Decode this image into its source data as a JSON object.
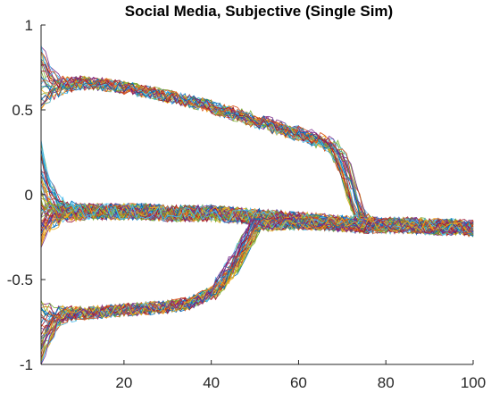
{
  "chart_data": {
    "type": "line",
    "title": "Social Media, Subjective (Single Sim)",
    "xlabel": "",
    "ylabel": "",
    "xlim": [
      1,
      100
    ],
    "ylim": [
      -1,
      1
    ],
    "xticks": [
      20,
      40,
      60,
      80,
      100
    ],
    "yticks": [
      -1,
      -0.5,
      0,
      0.5,
      1
    ],
    "xtick_labels": [
      "20",
      "40",
      "60",
      "80",
      "100"
    ],
    "ytick_labels": [
      "-1",
      "-0.5",
      "0",
      "0.5",
      "1"
    ],
    "grid": false,
    "legend": "none",
    "x": [
      1,
      3,
      5,
      7,
      10,
      15,
      20,
      25,
      30,
      35,
      40,
      45,
      50,
      55,
      60,
      65,
      68,
      70,
      72,
      74,
      76,
      80,
      85,
      90,
      95,
      100
    ],
    "series_groups": [
      {
        "count": 30,
        "spread": 0.04,
        "initial_spread": 0.22,
        "values": [
          0.72,
          0.66,
          0.64,
          0.65,
          0.66,
          0.65,
          0.63,
          0.61,
          0.58,
          0.55,
          0.52,
          0.48,
          0.44,
          0.4,
          0.36,
          0.32,
          0.28,
          0.2,
          0.05,
          -0.12,
          -0.17,
          -0.18,
          -0.18,
          -0.19,
          -0.19,
          -0.2
        ]
      },
      {
        "count": 60,
        "spread": 0.05,
        "initial_spread": 0.3,
        "values": [
          0.0,
          -0.05,
          -0.09,
          -0.1,
          -0.1,
          -0.1,
          -0.1,
          -0.1,
          -0.11,
          -0.11,
          -0.11,
          -0.12,
          -0.13,
          -0.14,
          -0.15,
          -0.16,
          -0.17,
          -0.17,
          -0.17,
          -0.18,
          -0.18,
          -0.18,
          -0.18,
          -0.19,
          -0.19,
          -0.2
        ]
      },
      {
        "count": 40,
        "spread": 0.04,
        "initial_spread": 0.2,
        "values": [
          -0.82,
          -0.76,
          -0.72,
          -0.7,
          -0.7,
          -0.69,
          -0.68,
          -0.67,
          -0.66,
          -0.64,
          -0.58,
          -0.42,
          -0.18,
          -0.17,
          -0.17,
          -0.17,
          -0.17,
          -0.18,
          -0.18,
          -0.18,
          -0.18,
          -0.18,
          -0.18,
          -0.19,
          -0.19,
          -0.2
        ]
      }
    ],
    "colors": [
      "#0072BD",
      "#D95319",
      "#EDB120",
      "#7E2F8E",
      "#77AC30",
      "#4DBEEE",
      "#A2142F"
    ]
  }
}
